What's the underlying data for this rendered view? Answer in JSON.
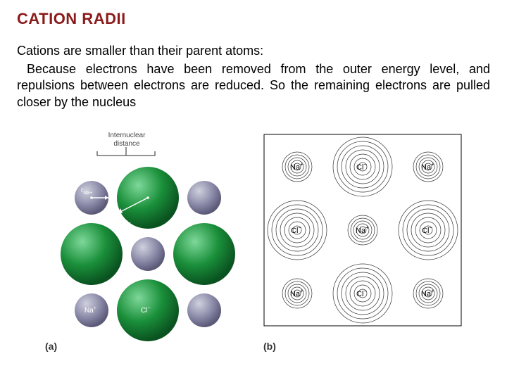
{
  "title": "CATION RADII",
  "subtitle": "Cations are smaller than their parent atoms:",
  "body": "Because electrons have been removed from the outer energy level, and repulsions between electrons are reduced. So the remaining electrons are pulled closer by the nucleus",
  "figA": {
    "label": "(a)",
    "distanceLabel1": "Internuclear",
    "distanceLabel2": "distance",
    "rNa": "r",
    "rNaSub": "Na+",
    "rCl": "r",
    "rClSub": "Cl−",
    "ions": {
      "na": "Na",
      "naSup": "+",
      "cl": "Cl",
      "clSup": "−"
    },
    "colors": {
      "na": "#8a8aa8",
      "naLight": "#b5b5c8",
      "cl": "#1a8f3a",
      "clLight": "#3fb85f",
      "clDark": "#0d6b28"
    }
  },
  "figB": {
    "label": "(b)",
    "ions": {
      "na": "Na",
      "naSup": "+",
      "cl": "Cl",
      "clSup": "−"
    }
  }
}
